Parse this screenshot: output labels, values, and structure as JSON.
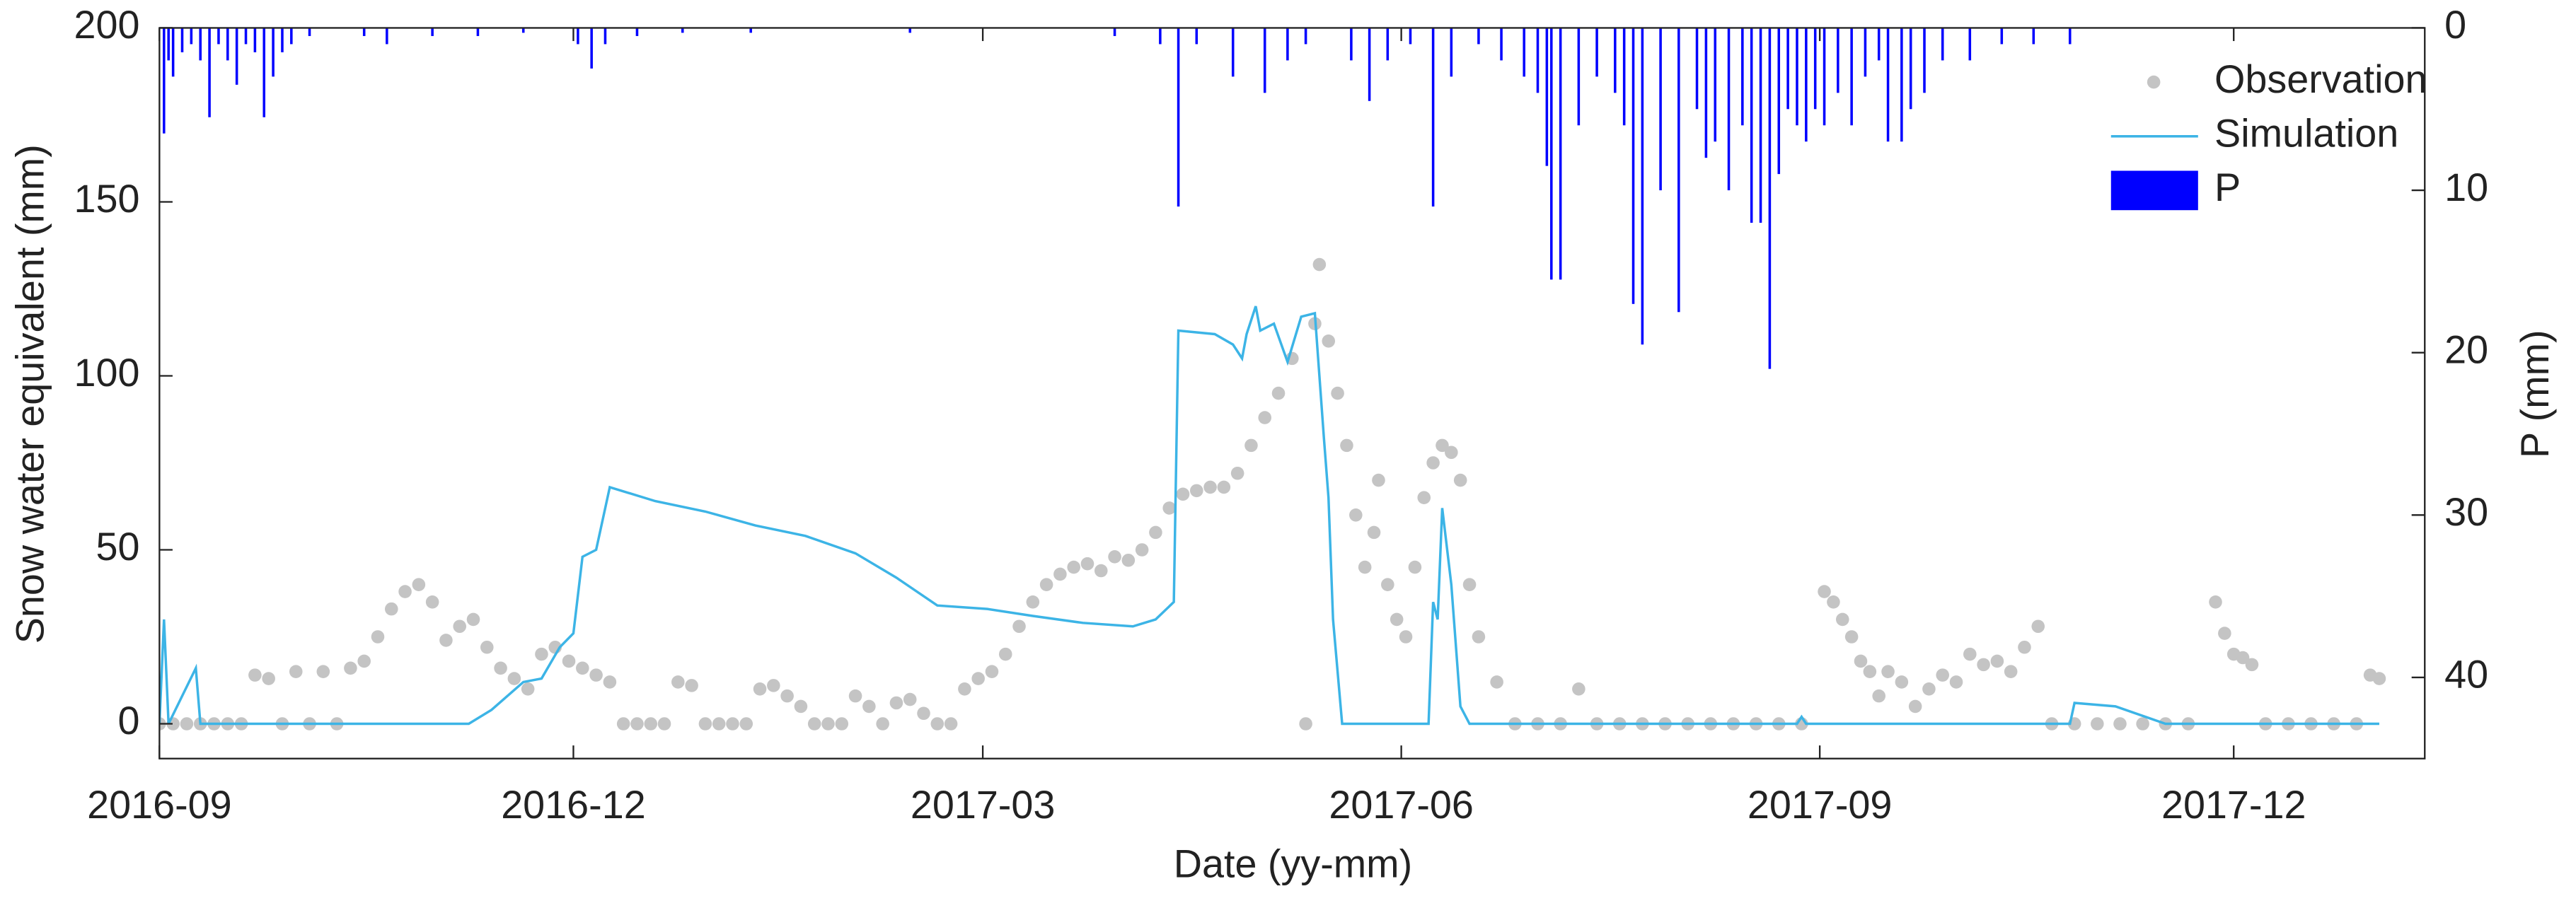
{
  "chart_data": {
    "type": "line",
    "xlabel": "Date (yy-mm)",
    "ylabel": "Snow water equivalent (mm)",
    "y2label": "P (mm)",
    "xlim": [
      0,
      498
    ],
    "xticks": [
      {
        "value": 0,
        "label": "2016-09"
      },
      {
        "value": 91,
        "label": "2016-12"
      },
      {
        "value": 181,
        "label": "2017-03"
      },
      {
        "value": 273,
        "label": "2017-06"
      },
      {
        "value": 365,
        "label": "2017-09"
      },
      {
        "value": 456,
        "label": "2017-12"
      }
    ],
    "ylim": [
      -10,
      200
    ],
    "yticks": [
      0,
      50,
      100,
      150,
      200
    ],
    "y2lim": [
      0,
      45
    ],
    "y2ticks": [
      0,
      10,
      20,
      30,
      40
    ],
    "y2_reversed": true,
    "legend": "upper right",
    "grid": false,
    "series": [
      {
        "name": "Observation",
        "type": "scatter",
        "color": "#c4c4c4",
        "x": [
          0,
          3,
          6,
          9,
          12,
          15,
          18,
          21,
          24,
          27,
          30,
          33,
          36,
          39,
          42,
          45,
          48,
          51,
          54,
          57,
          60,
          63,
          66,
          69,
          72,
          75,
          78,
          81,
          84,
          87,
          90,
          93,
          96,
          99,
          102,
          105,
          108,
          111,
          114,
          117,
          120,
          123,
          126,
          129,
          132,
          135,
          138,
          141,
          144,
          147,
          150,
          153,
          156,
          159,
          162,
          165,
          168,
          171,
          174,
          177,
          180,
          183,
          186,
          189,
          192,
          195,
          198,
          201,
          204,
          207,
          210,
          213,
          216,
          219,
          222,
          225,
          228,
          231,
          234,
          237,
          240,
          243,
          246,
          249,
          252,
          254,
          255,
          257,
          259,
          261,
          263,
          265,
          267,
          268,
          270,
          272,
          274,
          276,
          278,
          280,
          282,
          284,
          286,
          288,
          290,
          294,
          298,
          303,
          308,
          312,
          316,
          321,
          326,
          331,
          336,
          341,
          346,
          351,
          356,
          361,
          366,
          368,
          370,
          372,
          374,
          376,
          378,
          380,
          383,
          386,
          389,
          392,
          395,
          398,
          401,
          404,
          407,
          410,
          413,
          416,
          421,
          426,
          431,
          436,
          441,
          446,
          452,
          454,
          456,
          458,
          460,
          463,
          468,
          473,
          478,
          483,
          486,
          488
        ],
        "values": [
          0,
          0,
          0,
          0,
          0,
          0,
          0,
          14,
          13,
          0,
          15,
          0,
          15,
          0,
          16,
          18,
          25,
          33,
          38,
          40,
          35,
          24,
          28,
          30,
          22,
          16,
          13,
          10,
          20,
          22,
          18,
          16,
          14,
          12,
          0,
          0,
          0,
          0,
          12,
          11,
          0,
          0,
          0,
          0,
          10,
          11,
          8,
          5,
          0,
          0,
          0,
          8,
          5,
          0,
          6,
          7,
          3,
          0,
          0,
          10,
          13,
          15,
          20,
          28,
          35,
          40,
          43,
          45,
          46,
          44,
          48,
          47,
          50,
          55,
          62,
          66,
          67,
          68,
          68,
          72,
          80,
          88,
          95,
          105,
          0,
          115,
          132,
          110,
          95,
          80,
          60,
          45,
          55,
          70,
          40,
          30,
          25,
          45,
          65,
          75,
          80,
          78,
          70,
          40,
          25,
          12,
          0,
          0,
          0,
          10,
          0,
          0,
          0,
          0,
          0,
          0,
          0,
          0,
          0,
          0,
          38,
          35,
          30,
          25,
          18,
          15,
          8,
          15,
          12,
          5,
          10,
          14,
          12,
          20,
          17,
          18,
          15,
          22,
          28,
          0,
          0,
          0,
          0,
          0,
          0,
          0,
          35,
          26,
          20,
          19,
          17,
          0,
          0,
          0,
          0,
          0,
          14,
          13
        ]
      },
      {
        "name": "Simulation",
        "type": "line",
        "color": "#3cb4e6",
        "x": [
          0,
          1,
          2,
          8,
          9,
          68,
          73,
          80,
          84,
          88,
          91,
          93,
          96,
          99,
          109,
          120,
          131,
          142,
          153,
          162,
          171,
          182,
          192,
          203,
          214,
          219,
          223,
          224,
          232,
          236,
          238,
          239,
          241,
          242,
          245,
          248,
          251,
          254,
          256,
          257,
          258,
          260,
          279,
          280,
          281,
          282,
          284,
          286,
          288,
          360,
          361,
          362,
          420,
          421,
          430,
          441,
          488
        ],
        "values": [
          0,
          30,
          0,
          16,
          0,
          0,
          4,
          12,
          13,
          22,
          26,
          48,
          50,
          68,
          64,
          61,
          57,
          54,
          49,
          42,
          34,
          33,
          31,
          29,
          28,
          30,
          35,
          113,
          112,
          109,
          105,
          112,
          120,
          113,
          115,
          104,
          117,
          118,
          82,
          65,
          30,
          0,
          0,
          35,
          30,
          62,
          40,
          5,
          0,
          0,
          2,
          0,
          0,
          6,
          5,
          0,
          0
        ]
      },
      {
        "name": "P",
        "type": "bar",
        "axis": "y2",
        "color": "#0000ff",
        "x": [
          1,
          2,
          3,
          5,
          7,
          9,
          11,
          13,
          15,
          17,
          19,
          21,
          23,
          25,
          27,
          29,
          33,
          45,
          50,
          60,
          70,
          80,
          92,
          95,
          98,
          105,
          115,
          130,
          165,
          210,
          220,
          224,
          228,
          236,
          243,
          248,
          252,
          262,
          266,
          270,
          275,
          280,
          284,
          290,
          295,
          300,
          303,
          305,
          306,
          308,
          312,
          316,
          320,
          322,
          324,
          326,
          330,
          334,
          338,
          340,
          342,
          345,
          348,
          350,
          352,
          354,
          356,
          358,
          360,
          362,
          364,
          366,
          369,
          372,
          375,
          378,
          380,
          383,
          385,
          388,
          392,
          398,
          405,
          412,
          420
        ],
        "values": [
          6.5,
          2,
          3,
          1.5,
          1,
          2,
          5.5,
          1,
          2,
          3.5,
          1,
          1.5,
          5.5,
          3,
          1.5,
          1,
          0.5,
          0.5,
          1,
          0.5,
          0.5,
          0.3,
          1,
          2.5,
          1,
          0.5,
          0.3,
          0.3,
          0.3,
          0.5,
          1,
          11,
          1,
          3,
          4,
          2,
          1,
          2,
          4.5,
          2,
          1,
          11,
          3,
          1,
          2,
          3,
          4,
          8.5,
          15.5,
          15.5,
          6,
          3,
          4,
          6,
          17,
          19.5,
          10,
          17.5,
          5,
          8,
          7,
          10,
          6,
          12,
          12,
          21,
          9,
          5,
          6,
          7,
          5,
          6,
          4,
          6,
          3,
          2,
          7,
          7,
          5,
          4,
          2,
          2,
          1,
          1,
          1
        ]
      }
    ]
  }
}
